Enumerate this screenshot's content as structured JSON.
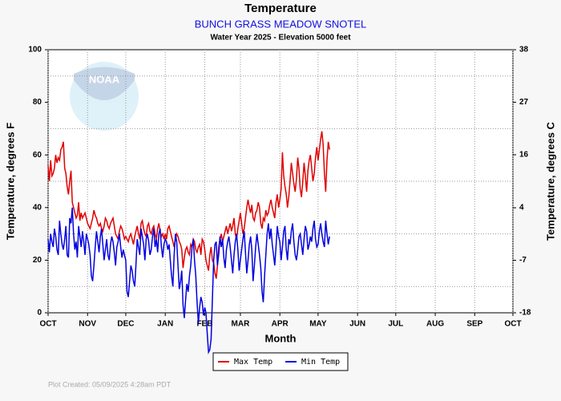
{
  "chart_data": {
    "type": "line",
    "title": "Temperature",
    "subtitle": "BUNCH GRASS MEADOW SNOTEL",
    "caption": "Water Year 2025 -  Elevation 5000 feet",
    "ylabel": "Temperature, degrees F",
    "y2label": "Temperature, degrees C",
    "xlabel": "Month",
    "footer": "Plot Created: 05/09/2025 4:28am PDT",
    "watermark": "NOAA",
    "grid": true,
    "legend": "bottom",
    "xlim": [
      0,
      365
    ],
    "xticks": [
      {
        "value": 0,
        "label": "OCT"
      },
      {
        "value": 31,
        "label": "NOV"
      },
      {
        "value": 61,
        "label": "DEC"
      },
      {
        "value": 92,
        "label": "JAN"
      },
      {
        "value": 123,
        "label": "FEB"
      },
      {
        "value": 151,
        "label": "MAR"
      },
      {
        "value": 182,
        "label": "APR"
      },
      {
        "value": 212,
        "label": "MAY"
      },
      {
        "value": 243,
        "label": "JUN"
      },
      {
        "value": 273,
        "label": "JUL"
      },
      {
        "value": 304,
        "label": "AUG"
      },
      {
        "value": 335,
        "label": "SEP"
      },
      {
        "value": 365,
        "label": "OCT"
      }
    ],
    "ylim": [
      0,
      100
    ],
    "yticks": [
      0,
      20,
      40,
      60,
      80,
      100
    ],
    "yminor": [
      10,
      30,
      50,
      70,
      90
    ],
    "y2lim": [
      -17.8,
      37.8
    ],
    "y2ticks": [
      {
        "value": -17.8,
        "label": "-18"
      },
      {
        "value": -6.7,
        "label": "-7"
      },
      {
        "value": 4.4,
        "label": "4"
      },
      {
        "value": 15.6,
        "label": "16"
      },
      {
        "value": 26.7,
        "label": "27"
      },
      {
        "value": 37.8,
        "label": "38"
      }
    ],
    "series": [
      {
        "name": "Max Temp",
        "color": "#e00000",
        "values": [
          56,
          50,
          58,
          52,
          53,
          55,
          60,
          57,
          59,
          58,
          62,
          63,
          65,
          55,
          53,
          48,
          45,
          50,
          54,
          42,
          40,
          38,
          36,
          37,
          42,
          35,
          38,
          36,
          37,
          38,
          36,
          34,
          33,
          32,
          34,
          36,
          39,
          37,
          36,
          34,
          33,
          34,
          32,
          31,
          33,
          36,
          35,
          33,
          32,
          34,
          35,
          36,
          33,
          30,
          29,
          28,
          31,
          33,
          32,
          30,
          28,
          29,
          28,
          27,
          29,
          30,
          28,
          26,
          29,
          31,
          33,
          30,
          28,
          34,
          35,
          32,
          30,
          29,
          33,
          34,
          31,
          30,
          32,
          33,
          30,
          28,
          32,
          34,
          31,
          29,
          30,
          28,
          30,
          28,
          32,
          33,
          31,
          29,
          27,
          25,
          28,
          30,
          29,
          27,
          26,
          24,
          17,
          21,
          24,
          25,
          23,
          22,
          26,
          25,
          28,
          27,
          24,
          23,
          25,
          26,
          22,
          28,
          27,
          24,
          20,
          18,
          16,
          22,
          25,
          20,
          19,
          15,
          13,
          18,
          25,
          28,
          30,
          27,
          29,
          31,
          33,
          30,
          32,
          34,
          31,
          33,
          36,
          30,
          28,
          32,
          35,
          38,
          34,
          30,
          32,
          36,
          40,
          43,
          40,
          38,
          41,
          36,
          35,
          38,
          39,
          42,
          40,
          34,
          32,
          36,
          35,
          39,
          37,
          38,
          41,
          43,
          40,
          38,
          36,
          42,
          45,
          40,
          43,
          47,
          61,
          52,
          48,
          45,
          40,
          44,
          50,
          57,
          53,
          49,
          46,
          51,
          59,
          55,
          47,
          44,
          50,
          57,
          52,
          46,
          54,
          58,
          60,
          55,
          50,
          53,
          59,
          63,
          58,
          62,
          66,
          69,
          64,
          53,
          46,
          58,
          65,
          62
        ]
      },
      {
        "name": "Min Temp",
        "color": "#0000e0",
        "values": [
          28,
          23,
          30,
          27,
          25,
          32,
          29,
          24,
          22,
          35,
          30,
          26,
          24,
          28,
          33,
          22,
          21,
          36,
          34,
          40,
          30,
          24,
          27,
          21,
          33,
          29,
          25,
          31,
          27,
          22,
          30,
          28,
          26,
          22,
          14,
          12,
          18,
          25,
          31,
          27,
          23,
          29,
          32,
          26,
          20,
          24,
          28,
          22,
          20,
          26,
          29,
          27,
          23,
          18,
          25,
          27,
          30,
          25,
          21,
          24,
          22,
          20,
          8,
          6,
          12,
          18,
          16,
          12,
          10,
          18,
          28,
          25,
          22,
          32,
          29,
          26,
          20,
          28,
          30,
          27,
          22,
          24,
          29,
          32,
          25,
          28,
          23,
          30,
          32,
          25,
          21,
          26,
          28,
          27,
          24,
          26,
          20,
          14,
          10,
          22,
          30,
          27,
          18,
          9,
          12,
          16,
          3,
          -2,
          5,
          11,
          8,
          14,
          18,
          25,
          28,
          20,
          14,
          4,
          -4,
          2,
          6,
          4,
          -1,
          2,
          0,
          -8,
          -15,
          -14,
          -10,
          5,
          20,
          26,
          27,
          18,
          22,
          29,
          25,
          28,
          21,
          17,
          24,
          27,
          29,
          25,
          20,
          15,
          22,
          27,
          30,
          24,
          16,
          20,
          24,
          28,
          31,
          23,
          15,
          20,
          26,
          29,
          24,
          12,
          18,
          25,
          30,
          26,
          22,
          17,
          8,
          4,
          14,
          22,
          30,
          34,
          28,
          32,
          26,
          22,
          18,
          25,
          33,
          29,
          27,
          20,
          25,
          31,
          33,
          24,
          20,
          28,
          26,
          31,
          34,
          27,
          22,
          20,
          24,
          29,
          30,
          26,
          22,
          28,
          33,
          31,
          24,
          26,
          29,
          27,
          32,
          35,
          28,
          25,
          26,
          31,
          34,
          30,
          27,
          25,
          35,
          30,
          26,
          29
        ]
      }
    ]
  }
}
